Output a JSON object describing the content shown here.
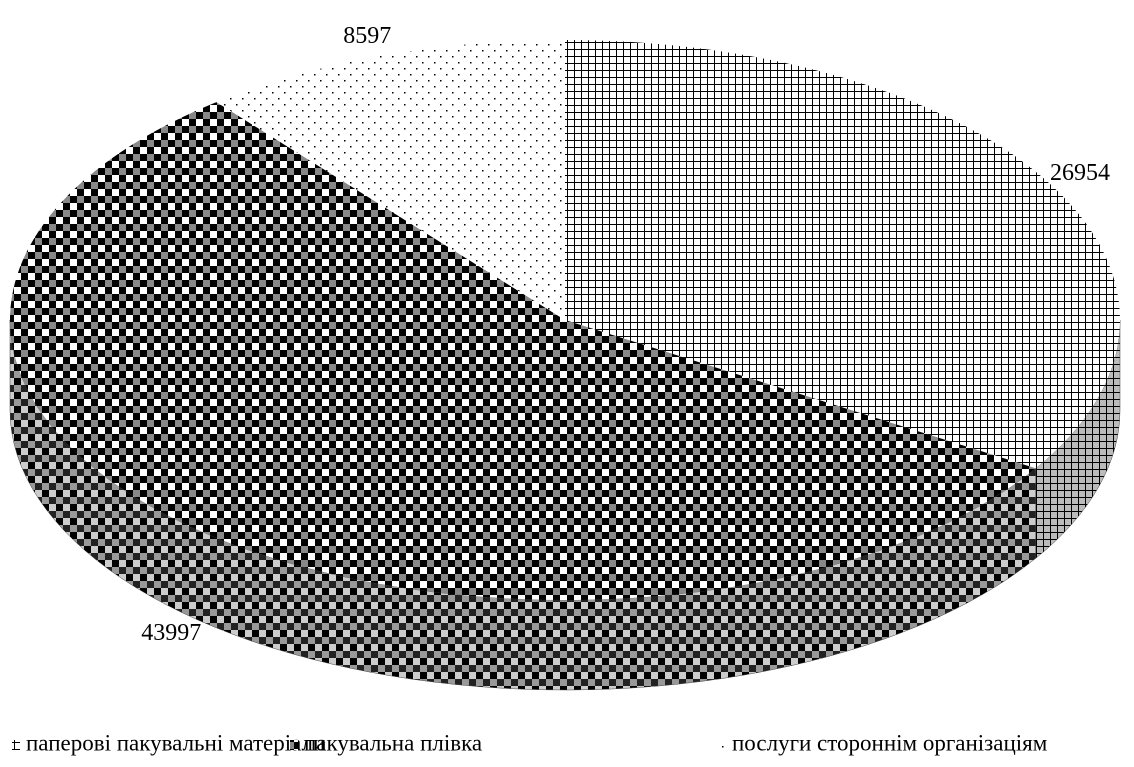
{
  "chart_data": {
    "type": "pie3d",
    "categories": [
      "паперові пакувальні матеріали",
      "пакувальна плівка",
      "послуги стороннім організаціям"
    ],
    "values": [
      26954,
      43997,
      8597
    ],
    "legend": "bottom"
  }
}
